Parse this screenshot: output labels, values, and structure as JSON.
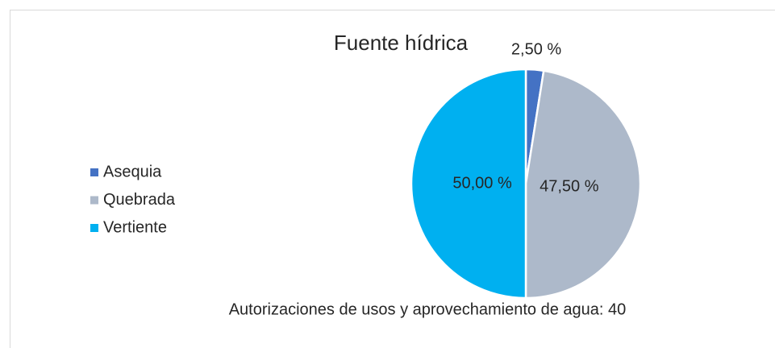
{
  "chart_data": {
    "type": "pie",
    "title": "Fuente hídrica",
    "categories": [
      "Asequia",
      "Quebrada",
      "Vertiente"
    ],
    "values": [
      2.5,
      47.5,
      50
    ],
    "value_labels": [
      "2,50 %",
      "47,50 %",
      "50,00 %"
    ],
    "colors": [
      "#4472c4",
      "#adb9ca",
      "#00b0f0"
    ],
    "annotation": "Autorizaciones de usos y aprovechamiento de agua: 40",
    "legend": "left"
  }
}
